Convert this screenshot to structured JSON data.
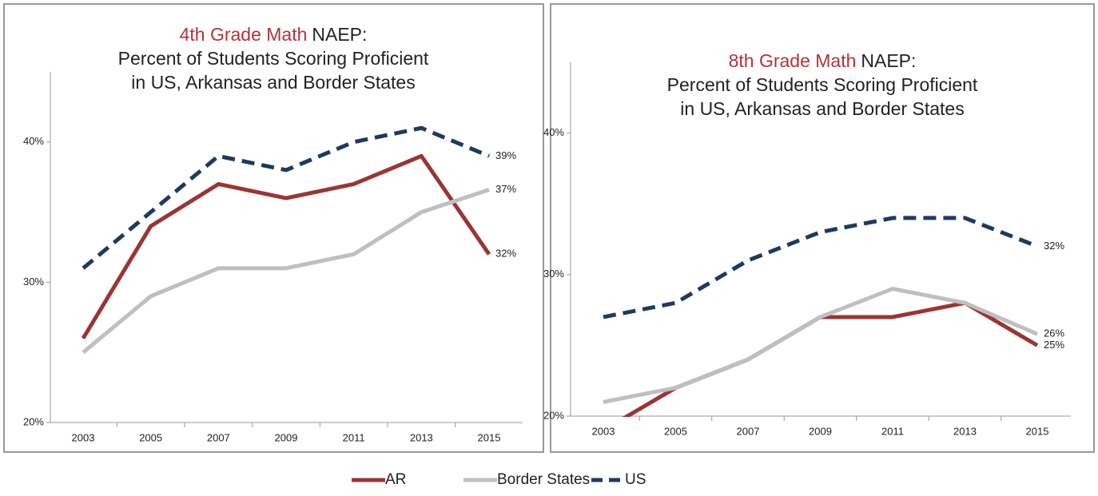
{
  "legend": [
    {
      "name": "AR",
      "color": "#9b3535",
      "dash": false
    },
    {
      "name": "Border States",
      "color": "#bfbfbf",
      "dash": false
    },
    {
      "name": "US",
      "color": "#1f3a5f",
      "dash": true
    }
  ],
  "chart_data": [
    {
      "type": "line",
      "title_highlight": "4th Grade Math",
      "title_rest": "NAEP:",
      "title_lines": [
        "Percent of Students Scoring Proficient",
        "in US, Arkansas and Border States"
      ],
      "categories": [
        "2003",
        "2005",
        "2007",
        "2009",
        "2011",
        "2013",
        "2015"
      ],
      "ylim": [
        20,
        45
      ],
      "yticks": [
        {
          "value": 20,
          "label": "20%"
        },
        {
          "value": 30,
          "label": "30%"
        },
        {
          "value": 40,
          "label": "40%"
        }
      ],
      "series": [
        {
          "values": [
            26,
            34,
            37,
            36,
            37,
            39,
            32
          ],
          "end_label": "32%"
        },
        {
          "values": [
            25,
            29,
            31,
            31,
            32,
            35,
            36.6
          ],
          "end_label": "37%"
        },
        {
          "values": [
            31,
            35,
            39,
            38,
            40,
            41,
            39
          ],
          "end_label": "39%"
        }
      ]
    },
    {
      "type": "line",
      "title_highlight": "8th Grade Math",
      "title_rest": "NAEP:",
      "title_lines": [
        "Percent of Students Scoring Proficient",
        "in US, Arkansas and Border States"
      ],
      "categories": [
        "2003",
        "2005",
        "2007",
        "2009",
        "2011",
        "2013",
        "2015"
      ],
      "ylim": [
        20,
        45
      ],
      "yticks": [
        {
          "value": 20,
          "label": "20%"
        },
        {
          "value": 30,
          "label": "30%"
        },
        {
          "value": 40,
          "label": "40%"
        }
      ],
      "series": [
        {
          "values": [
            19,
            22,
            24,
            27,
            27,
            28,
            25
          ],
          "end_label": "25%"
        },
        {
          "values": [
            21,
            22,
            24,
            27,
            29,
            28,
            25.8
          ],
          "end_label": "26%"
        },
        {
          "values": [
            27,
            28,
            31,
            33,
            34,
            34,
            32
          ],
          "end_label": "32%"
        }
      ]
    }
  ]
}
